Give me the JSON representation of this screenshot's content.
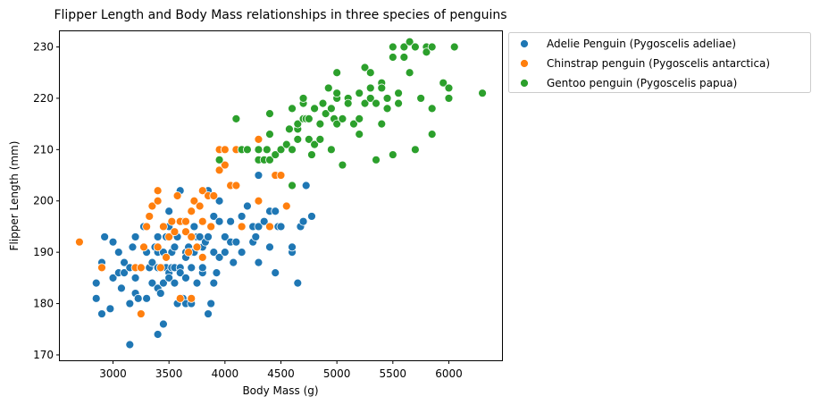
{
  "chart_data": {
    "type": "scatter",
    "title": "Flipper Length and Body Mass relationships in three species of penguins",
    "xlabel": "Body Mass (g)",
    "ylabel": "Flipper Length (mm)",
    "xlim": [
      2525,
      6475
    ],
    "ylim": [
      168.95,
      233.05
    ],
    "xticks": [
      3000,
      3500,
      4000,
      4500,
      5000,
      5500,
      6000
    ],
    "yticks": [
      170,
      180,
      190,
      200,
      210,
      220,
      230
    ],
    "grid": false,
    "legend_position": "outside-top-right",
    "series": [
      {
        "name": "Adelie Penguin (Pygoscelis adeliae)",
        "color": "#1f77b4",
        "points": [
          [
            2850,
            181
          ],
          [
            2850,
            184
          ],
          [
            2900,
            188
          ],
          [
            2900,
            187
          ],
          [
            2900,
            178
          ],
          [
            2925,
            193
          ],
          [
            2975,
            179
          ],
          [
            3000,
            192
          ],
          [
            3000,
            185
          ],
          [
            3050,
            190
          ],
          [
            3050,
            186
          ],
          [
            3075,
            183
          ],
          [
            3100,
            186
          ],
          [
            3100,
            188
          ],
          [
            3150,
            180
          ],
          [
            3150,
            172
          ],
          [
            3150,
            187
          ],
          [
            3175,
            191
          ],
          [
            3200,
            182
          ],
          [
            3200,
            185
          ],
          [
            3200,
            193
          ],
          [
            3225,
            181
          ],
          [
            3250,
            187
          ],
          [
            3275,
            195
          ],
          [
            3300,
            190
          ],
          [
            3300,
            181
          ],
          [
            3325,
            187
          ],
          [
            3350,
            184
          ],
          [
            3350,
            188
          ],
          [
            3375,
            191
          ],
          [
            3400,
            174
          ],
          [
            3400,
            183
          ],
          [
            3400,
            187
          ],
          [
            3400,
            190
          ],
          [
            3400,
            193
          ],
          [
            3425,
            182
          ],
          [
            3450,
            176
          ],
          [
            3450,
            184
          ],
          [
            3450,
            187
          ],
          [
            3450,
            190
          ],
          [
            3475,
            193
          ],
          [
            3475,
            187
          ],
          [
            3500,
            195
          ],
          [
            3500,
            198
          ],
          [
            3500,
            186
          ],
          [
            3500,
            185
          ],
          [
            3525,
            190
          ],
          [
            3525,
            187
          ],
          [
            3550,
            191
          ],
          [
            3550,
            187
          ],
          [
            3550,
            184
          ],
          [
            3575,
            180
          ],
          [
            3575,
            193
          ],
          [
            3600,
            187
          ],
          [
            3600,
            202
          ],
          [
            3600,
            186
          ],
          [
            3625,
            196
          ],
          [
            3625,
            181
          ],
          [
            3650,
            180
          ],
          [
            3650,
            190
          ],
          [
            3650,
            185
          ],
          [
            3650,
            189
          ],
          [
            3675,
            191
          ],
          [
            3700,
            187
          ],
          [
            3700,
            190
          ],
          [
            3700,
            180
          ],
          [
            3725,
            190
          ],
          [
            3725,
            195
          ],
          [
            3750,
            191
          ],
          [
            3750,
            193
          ],
          [
            3750,
            184
          ],
          [
            3775,
            193
          ],
          [
            3800,
            186
          ],
          [
            3800,
            196
          ],
          [
            3800,
            187
          ],
          [
            3800,
            191
          ],
          [
            3825,
            192
          ],
          [
            3850,
            202
          ],
          [
            3850,
            193
          ],
          [
            3850,
            178
          ],
          [
            3875,
            180
          ],
          [
            3900,
            190
          ],
          [
            3900,
            184
          ],
          [
            3900,
            197
          ],
          [
            3925,
            186
          ],
          [
            3950,
            196
          ],
          [
            3950,
            189
          ],
          [
            3950,
            200
          ],
          [
            4000,
            193
          ],
          [
            4000,
            190
          ],
          [
            4050,
            196
          ],
          [
            4050,
            192
          ],
          [
            4075,
            188
          ],
          [
            4100,
            192
          ],
          [
            4150,
            197
          ],
          [
            4150,
            190
          ],
          [
            4200,
            199
          ],
          [
            4250,
            195
          ],
          [
            4250,
            192
          ],
          [
            4275,
            193
          ],
          [
            4300,
            205
          ],
          [
            4300,
            188
          ],
          [
            4300,
            195
          ],
          [
            4350,
            196
          ],
          [
            4400,
            198
          ],
          [
            4400,
            191
          ],
          [
            4450,
            186
          ],
          [
            4450,
            198
          ],
          [
            4475,
            195
          ],
          [
            4500,
            195
          ],
          [
            4600,
            190
          ],
          [
            4600,
            191
          ],
          [
            4650,
            184
          ],
          [
            4675,
            195
          ],
          [
            4700,
            196
          ],
          [
            4725,
            203
          ],
          [
            4775,
            197
          ]
        ]
      },
      {
        "name": "Chinstrap penguin (Pygoscelis antarctica)",
        "color": "#ff7f0e",
        "points": [
          [
            2700,
            192
          ],
          [
            2900,
            187
          ],
          [
            3200,
            187
          ],
          [
            3250,
            178
          ],
          [
            3250,
            187
          ],
          [
            3275,
            191
          ],
          [
            3300,
            195
          ],
          [
            3325,
            197
          ],
          [
            3350,
            199
          ],
          [
            3400,
            202
          ],
          [
            3400,
            200
          ],
          [
            3400,
            191
          ],
          [
            3425,
            187
          ],
          [
            3450,
            195
          ],
          [
            3475,
            189
          ],
          [
            3500,
            193
          ],
          [
            3525,
            196
          ],
          [
            3550,
            194
          ],
          [
            3575,
            201
          ],
          [
            3600,
            196
          ],
          [
            3600,
            181
          ],
          [
            3650,
            194
          ],
          [
            3650,
            196
          ],
          [
            3675,
            190
          ],
          [
            3700,
            193
          ],
          [
            3700,
            198
          ],
          [
            3700,
            181
          ],
          [
            3725,
            200
          ],
          [
            3750,
            191
          ],
          [
            3775,
            199
          ],
          [
            3800,
            202
          ],
          [
            3800,
            196
          ],
          [
            3800,
            189
          ],
          [
            3850,
            201
          ],
          [
            3875,
            195
          ],
          [
            3900,
            201
          ],
          [
            3950,
            210
          ],
          [
            3950,
            206
          ],
          [
            4000,
            210
          ],
          [
            4000,
            207
          ],
          [
            4050,
            203
          ],
          [
            4100,
            203
          ],
          [
            4100,
            210
          ],
          [
            4150,
            195
          ],
          [
            4300,
            212
          ],
          [
            4300,
            200
          ],
          [
            4400,
            195
          ],
          [
            4450,
            205
          ],
          [
            4500,
            205
          ],
          [
            4550,
            199
          ]
        ]
      },
      {
        "name": "Gentoo penguin (Pygoscelis papua)",
        "color": "#2ca02c",
        "points": [
          [
            3950,
            208
          ],
          [
            4100,
            216
          ],
          [
            4150,
            210
          ],
          [
            4200,
            210
          ],
          [
            4300,
            208
          ],
          [
            4300,
            210
          ],
          [
            4350,
            208
          ],
          [
            4375,
            210
          ],
          [
            4400,
            217
          ],
          [
            4400,
            208
          ],
          [
            4400,
            213
          ],
          [
            4450,
            209
          ],
          [
            4500,
            210
          ],
          [
            4550,
            211
          ],
          [
            4575,
            214
          ],
          [
            4600,
            210
          ],
          [
            4600,
            218
          ],
          [
            4600,
            203
          ],
          [
            4650,
            214
          ],
          [
            4650,
            215
          ],
          [
            4650,
            212
          ],
          [
            4700,
            219
          ],
          [
            4700,
            216
          ],
          [
            4700,
            220
          ],
          [
            4725,
            216
          ],
          [
            4750,
            212
          ],
          [
            4750,
            216
          ],
          [
            4775,
            209
          ],
          [
            4800,
            211
          ],
          [
            4800,
            218
          ],
          [
            4850,
            212
          ],
          [
            4850,
            215
          ],
          [
            4875,
            219
          ],
          [
            4900,
            217
          ],
          [
            4925,
            222
          ],
          [
            4950,
            210
          ],
          [
            4950,
            218
          ],
          [
            4975,
            216
          ],
          [
            5000,
            220
          ],
          [
            5000,
            215
          ],
          [
            5000,
            225
          ],
          [
            5000,
            221
          ],
          [
            5050,
            216
          ],
          [
            5050,
            207
          ],
          [
            5100,
            220
          ],
          [
            5100,
            219
          ],
          [
            5150,
            215
          ],
          [
            5200,
            221
          ],
          [
            5200,
            216
          ],
          [
            5200,
            213
          ],
          [
            5250,
            226
          ],
          [
            5250,
            219
          ],
          [
            5300,
            220
          ],
          [
            5300,
            222
          ],
          [
            5300,
            225
          ],
          [
            5350,
            208
          ],
          [
            5350,
            219
          ],
          [
            5400,
            215
          ],
          [
            5400,
            223
          ],
          [
            5400,
            222
          ],
          [
            5450,
            220
          ],
          [
            5450,
            218
          ],
          [
            5500,
            209
          ],
          [
            5500,
            228
          ],
          [
            5500,
            230
          ],
          [
            5550,
            219
          ],
          [
            5550,
            221
          ],
          [
            5600,
            228
          ],
          [
            5600,
            230
          ],
          [
            5650,
            231
          ],
          [
            5650,
            225
          ],
          [
            5700,
            210
          ],
          [
            5700,
            230
          ],
          [
            5750,
            220
          ],
          [
            5800,
            230
          ],
          [
            5800,
            229
          ],
          [
            5850,
            213
          ],
          [
            5850,
            218
          ],
          [
            5850,
            230
          ],
          [
            5950,
            223
          ],
          [
            6000,
            222
          ],
          [
            6000,
            220
          ],
          [
            6050,
            230
          ],
          [
            6300,
            221
          ]
        ]
      }
    ]
  }
}
